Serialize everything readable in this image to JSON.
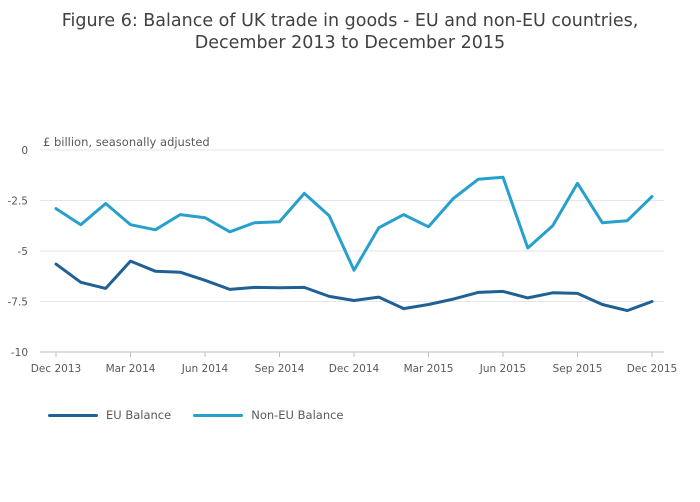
{
  "title_line1": "Figure 6: Balance of UK trade in goods - EU and non-EU countries,",
  "title_line2": "December 2013 to December 2015",
  "chart_data": {
    "type": "line",
    "title": "Figure 6: Balance of UK trade in goods - EU and non-EU countries, December 2013 to December 2015",
    "ylabel": "£ billion, seasonally adjusted",
    "xlabel": "",
    "ylim": [
      -10,
      0
    ],
    "yticks": [
      0,
      -2.5,
      -5,
      -7.5,
      -10
    ],
    "ytick_labels": [
      "0",
      "-2.5",
      "-5",
      "-7.5",
      "-10"
    ],
    "xtick_labels": [
      "Dec 2013",
      "Mar 2014",
      "Jun 2014",
      "Sep 2014",
      "Dec 2014",
      "Mar 2015",
      "Jun 2015",
      "Sep 2015",
      "Dec 2015"
    ],
    "xticks": [
      "2013-12",
      "2014-03",
      "2014-06",
      "2014-09",
      "2014-12",
      "2015-03",
      "2015-06",
      "2015-09",
      "2015-12"
    ],
    "x": [
      "2013-12",
      "2014-01",
      "2014-02",
      "2014-03",
      "2014-04",
      "2014-05",
      "2014-06",
      "2014-07",
      "2014-08",
      "2014-09",
      "2014-10",
      "2014-11",
      "2014-12",
      "2015-01",
      "2015-02",
      "2015-03",
      "2015-04",
      "2015-05",
      "2015-06",
      "2015-07",
      "2015-08",
      "2015-09",
      "2015-10",
      "2015-11",
      "2015-12"
    ],
    "grid": true,
    "legend_position": "bottom-left",
    "series": [
      {
        "name": "EU Balance",
        "color": "#206095",
        "values": [
          -5.65,
          -6.55,
          -6.85,
          -5.5,
          -6.0,
          -6.05,
          -6.45,
          -6.9,
          -6.8,
          -6.82,
          -6.8,
          -7.25,
          -7.45,
          -7.28,
          -7.85,
          -7.65,
          -7.38,
          -7.05,
          -7.0,
          -7.32,
          -7.07,
          -7.1,
          -7.65,
          -7.95,
          -7.5
        ]
      },
      {
        "name": "Non-EU Balance",
        "color": "#27a0cc",
        "values": [
          -2.9,
          -3.7,
          -2.65,
          -3.7,
          -3.95,
          -3.2,
          -3.35,
          -4.05,
          -3.6,
          -3.55,
          -2.15,
          -3.25,
          -5.95,
          -3.85,
          -3.2,
          -3.8,
          -2.4,
          -1.45,
          -1.35,
          -4.85,
          -3.75,
          -1.65,
          -3.6,
          -3.5,
          -2.3
        ]
      }
    ]
  }
}
